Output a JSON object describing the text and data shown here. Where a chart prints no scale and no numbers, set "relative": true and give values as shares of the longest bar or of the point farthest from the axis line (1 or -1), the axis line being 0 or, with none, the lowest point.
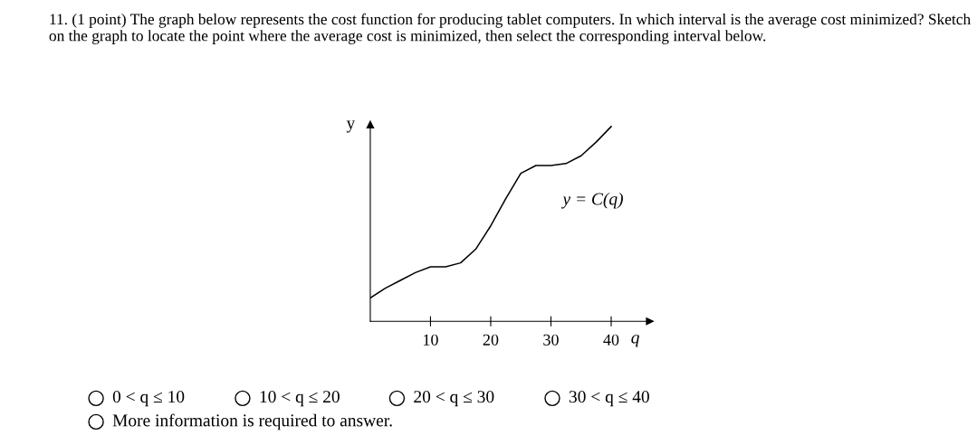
{
  "chart_data": {
    "type": "line",
    "relative": true,
    "title": "11. (1 point) The graph below represents the cost function for producing tablet computers. In which interval is the average cost minimized? Sketch on the graph to locate the point where the average cost is minimized, then select the corresponding interval below.",
    "xlabel": "q",
    "ylabel": "y",
    "x": [
      0,
      2.5,
      5,
      7.5,
      10,
      12.5,
      15,
      17.5,
      20,
      22.5,
      25,
      27.5,
      30,
      32.5,
      35,
      37.5,
      40
    ],
    "series": [
      {
        "name": "y = C(q)",
        "color": "#000000",
        "values": [
          0.12,
          0.17,
          0.21,
          0.25,
          0.28,
          0.28,
          0.3,
          0.37,
          0.49,
          0.63,
          0.76,
          0.8,
          0.8,
          0.81,
          0.85,
          0.92,
          1.0
        ]
      }
    ],
    "xlim": [
      0,
      46.4
    ],
    "xticks": [
      10,
      20,
      30,
      40
    ],
    "marker": "none",
    "line_style": "solid",
    "grid": false,
    "annotations": [
      "0 < q ≤ 10",
      "10 < q ≤ 20",
      "20 < q ≤ 30",
      "30 < q ≤ 40",
      "More information is required to answer."
    ]
  }
}
